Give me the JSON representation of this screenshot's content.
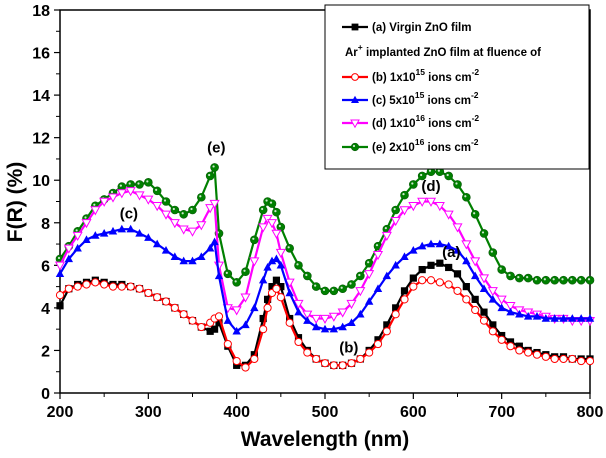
{
  "chart_data": {
    "type": "line",
    "title": "",
    "xlabel": "Wavelength (nm)",
    "ylabel": "F(R) (%)",
    "xlim": [
      200,
      800
    ],
    "ylim": [
      0,
      18
    ],
    "xticks": [
      200,
      300,
      400,
      500,
      600,
      700,
      800
    ],
    "xtick_labels": [
      "200",
      "300",
      "400",
      "500",
      "600",
      "700",
      "800"
    ],
    "yticks": [
      0,
      2,
      4,
      6,
      8,
      10,
      12,
      14,
      16,
      18
    ],
    "ytick_labels": [
      "0",
      "2",
      "4",
      "6",
      "8",
      "10",
      "12",
      "14",
      "16",
      "18"
    ],
    "grid": false,
    "legend_position": "top-right",
    "legend_heading": "Ar⁺ implanted ZnO film at fluence of",
    "legend_heading_parts": {
      "base": "Ar",
      "sup": "+",
      "rest": " implanted ZnO film at fluence of"
    },
    "x": [
      200,
      210,
      220,
      230,
      240,
      250,
      260,
      270,
      280,
      290,
      300,
      310,
      320,
      330,
      340,
      350,
      360,
      370,
      375,
      380,
      390,
      400,
      410,
      420,
      430,
      435,
      440,
      445,
      450,
      460,
      470,
      480,
      490,
      500,
      510,
      520,
      530,
      540,
      550,
      560,
      570,
      580,
      590,
      600,
      610,
      620,
      630,
      640,
      650,
      660,
      670,
      680,
      690,
      700,
      710,
      720,
      730,
      740,
      750,
      760,
      770,
      780,
      790,
      800
    ],
    "series": [
      {
        "name": "(a) Virgin ZnO film",
        "label_parts": {
          "prefix": "(a) Virgin ZnO film",
          "sup": "",
          "suffix": ""
        },
        "color": "#000000",
        "marker": "square",
        "values": [
          4.1,
          4.9,
          5.1,
          5.2,
          5.3,
          5.2,
          5.1,
          5.1,
          5.0,
          4.9,
          4.7,
          4.5,
          4.3,
          4.0,
          3.7,
          3.4,
          3.1,
          2.9,
          3.0,
          3.3,
          2.2,
          1.3,
          1.3,
          1.8,
          3.5,
          4.4,
          5.0,
          5.3,
          5.0,
          3.5,
          2.6,
          2.0,
          1.6,
          1.4,
          1.3,
          1.3,
          1.4,
          1.6,
          2.0,
          2.5,
          3.2,
          4.0,
          4.8,
          5.4,
          5.8,
          6.0,
          6.1,
          5.9,
          5.6,
          5.0,
          4.4,
          3.8,
          3.2,
          2.7,
          2.4,
          2.2,
          2.0,
          1.9,
          1.8,
          1.7,
          1.7,
          1.6,
          1.6,
          1.6
        ]
      },
      {
        "name": "(b) 1x10^15 ions cm^-2",
        "label_parts": {
          "prefix": "(b) 1x10",
          "sup": "15",
          "mid": " ions cm",
          "sup2": "-2"
        },
        "color": "#ff0000",
        "marker": "circle-open",
        "values": [
          4.6,
          4.9,
          5.0,
          5.1,
          5.2,
          5.1,
          5.0,
          5.0,
          5.0,
          4.9,
          4.7,
          4.5,
          4.3,
          4.0,
          3.7,
          3.4,
          3.1,
          3.3,
          3.5,
          3.6,
          2.3,
          1.5,
          1.2,
          1.6,
          3.0,
          4.0,
          4.7,
          4.9,
          4.5,
          3.3,
          2.4,
          1.9,
          1.6,
          1.4,
          1.3,
          1.3,
          1.4,
          1.6,
          1.9,
          2.3,
          2.9,
          3.7,
          4.4,
          5.0,
          5.3,
          5.3,
          5.2,
          5.1,
          4.8,
          4.4,
          3.9,
          3.4,
          2.9,
          2.5,
          2.2,
          2.0,
          1.9,
          1.8,
          1.7,
          1.6,
          1.6,
          1.6,
          1.5,
          1.5
        ]
      },
      {
        "name": "(c) 5x10^15 ions cm^-2",
        "label_parts": {
          "prefix": "(c) 5x10",
          "sup": "15",
          "mid": " ions cm",
          "sup2": "-2"
        },
        "color": "#0000ff",
        "marker": "triangle-up-filled",
        "values": [
          5.6,
          6.3,
          6.8,
          7.2,
          7.4,
          7.5,
          7.6,
          7.7,
          7.7,
          7.5,
          7.3,
          7.0,
          6.7,
          6.4,
          6.2,
          6.2,
          6.4,
          6.8,
          7.1,
          5.5,
          3.4,
          2.9,
          3.2,
          4.0,
          5.3,
          5.9,
          6.2,
          6.3,
          6.0,
          4.7,
          3.8,
          3.4,
          3.1,
          3.0,
          3.0,
          3.1,
          3.3,
          3.7,
          4.3,
          4.9,
          5.5,
          6.0,
          6.4,
          6.7,
          6.9,
          7.0,
          7.0,
          6.9,
          6.7,
          6.2,
          5.5,
          4.9,
          4.4,
          4.0,
          3.8,
          3.7,
          3.6,
          3.6,
          3.5,
          3.5,
          3.5,
          3.5,
          3.5,
          3.5
        ]
      },
      {
        "name": "(d) 1x10^16 ions cm^-2",
        "label_parts": {
          "prefix": "(d) 1x10",
          "sup": "16",
          "mid": " ions cm",
          "sup2": "-2"
        },
        "color": "#ff00ff",
        "marker": "triangle-down-open",
        "values": [
          6.0,
          6.8,
          7.4,
          8.0,
          8.6,
          9.0,
          9.2,
          9.4,
          9.5,
          9.3,
          9.1,
          8.8,
          8.4,
          8.0,
          7.7,
          7.6,
          7.9,
          8.7,
          8.9,
          6.0,
          4.0,
          3.9,
          4.5,
          6.2,
          7.8,
          8.2,
          8.0,
          7.5,
          6.6,
          5.2,
          4.2,
          3.7,
          3.5,
          3.5,
          3.6,
          3.8,
          4.2,
          4.8,
          5.6,
          6.5,
          7.4,
          8.1,
          8.6,
          8.8,
          9.0,
          9.0,
          8.8,
          8.4,
          7.8,
          7.0,
          6.2,
          5.4,
          4.8,
          4.4,
          4.1,
          3.9,
          3.8,
          3.7,
          3.6,
          3.5,
          3.5,
          3.4,
          3.4,
          3.4
        ]
      },
      {
        "name": "(e) 2x10^16 ions cm^-2",
        "label_parts": {
          "prefix": "(e) 2x10",
          "sup": "16",
          "mid": " ions cm",
          "sup2": "-2"
        },
        "color": "#008000",
        "marker": "circle-filled",
        "values": [
          6.3,
          6.9,
          7.6,
          8.2,
          8.8,
          9.1,
          9.4,
          9.7,
          9.8,
          9.8,
          9.9,
          9.5,
          9.0,
          8.6,
          8.4,
          8.6,
          9.2,
          10.2,
          10.6,
          7.5,
          5.6,
          5.2,
          5.7,
          7.2,
          8.6,
          9.0,
          8.9,
          8.5,
          7.8,
          6.8,
          6.0,
          5.5,
          5.0,
          4.8,
          4.8,
          4.9,
          5.1,
          5.5,
          6.1,
          6.9,
          7.7,
          8.6,
          9.3,
          9.8,
          10.2,
          10.4,
          10.4,
          10.2,
          9.8,
          9.2,
          8.4,
          7.5,
          6.6,
          5.8,
          5.5,
          5.4,
          5.4,
          5.3,
          5.3,
          5.3,
          5.3,
          5.3,
          5.3,
          5.3
        ]
      }
    ],
    "annotations": [
      {
        "text": "(a)",
        "x": 643,
        "y": 6.4
      },
      {
        "text": "(b)",
        "x": 527,
        "y": 1.9
      },
      {
        "text": "(c)",
        "x": 278,
        "y": 8.2
      },
      {
        "text": "(d)",
        "x": 620,
        "y": 9.5
      },
      {
        "text": "(e)",
        "x": 377,
        "y": 11.3
      }
    ]
  }
}
